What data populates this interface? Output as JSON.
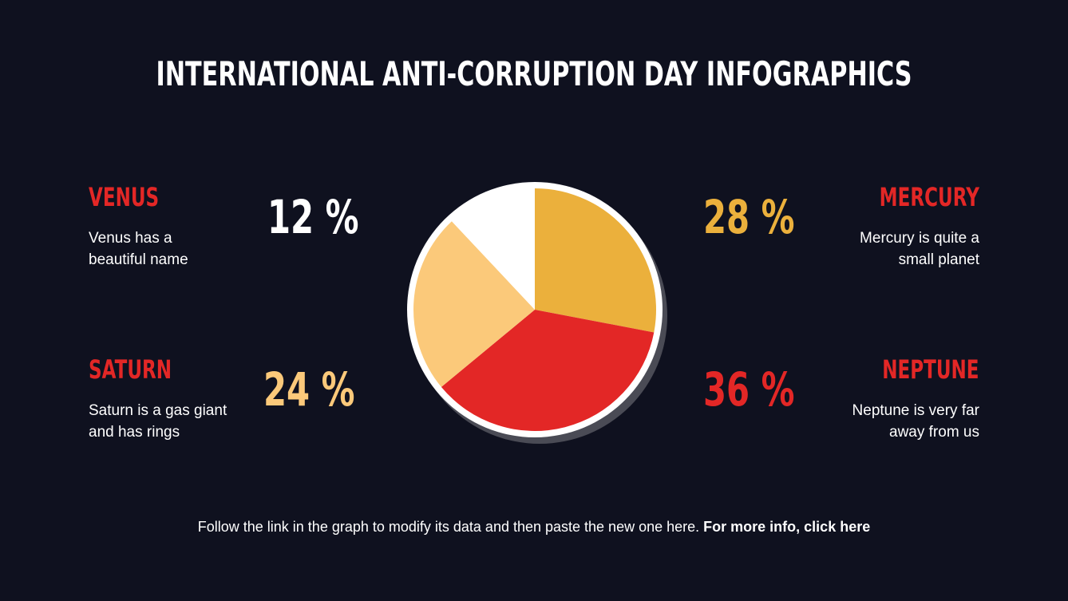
{
  "chart_data": {
    "type": "pie",
    "title": "INTERNATIONAL ANTI-CORRUPTION DAY INFOGRAPHICS",
    "categories": [
      "MERCURY",
      "NEPTUNE",
      "SATURN",
      "VENUS"
    ],
    "values": [
      28,
      36,
      24,
      12
    ],
    "value_labels": [
      "28 %",
      "36 %",
      "24 %",
      "12 %"
    ],
    "colors": [
      "#ebb03c",
      "#e32726",
      "#fbc97a",
      "#ffffff"
    ],
    "descriptions": [
      "Mercury is quite a small planet",
      "Neptune is very far away from us",
      "Saturn is a gas giant and has rings",
      "Venus has a beautiful name"
    ]
  },
  "footer": {
    "text": "Follow the link in the graph to modify its data and then paste the new one here.",
    "link": "For more info, click here"
  }
}
